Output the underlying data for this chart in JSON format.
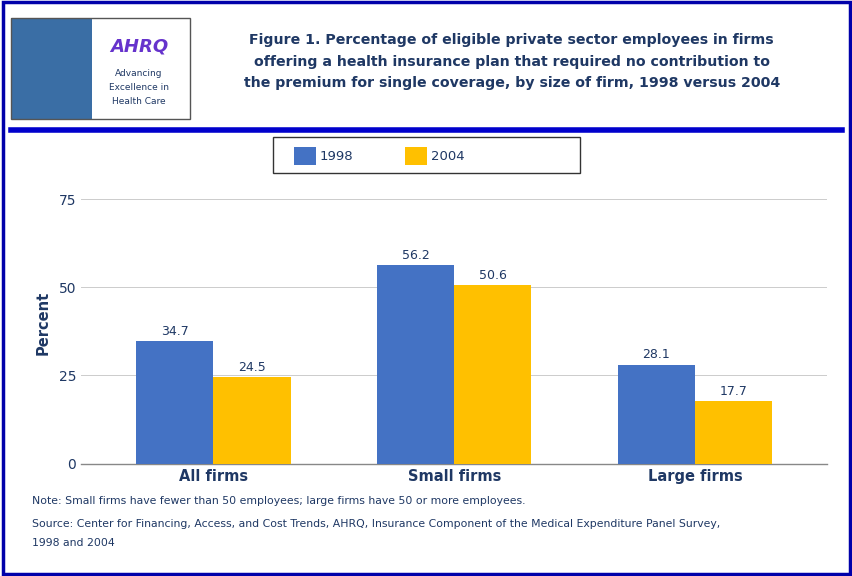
{
  "categories": [
    "All firms",
    "Small firms",
    "Large firms"
  ],
  "values_1998": [
    34.7,
    56.2,
    28.1
  ],
  "values_2004": [
    24.5,
    50.6,
    17.7
  ],
  "color_1998": "#4472C4",
  "color_2004": "#FFC000",
  "ylabel": "Percent",
  "ylim": [
    0,
    80
  ],
  "yticks": [
    0,
    25,
    50,
    75
  ],
  "legend_labels": [
    "1998",
    "2004"
  ],
  "title_line1": "Figure 1. Percentage of eligible private sector employees in firms",
  "title_line2": "offering a health insurance plan that required no contribution to",
  "title_line3": "the premium for single coverage, by size of firm, 1998 versus 2004",
  "note_line1": "Note: Small firms have fewer than 50 employees; large firms have 50 or more employees.",
  "note_line2": "Source: Center for Financing, Access, and Cost Trends, AHRQ, Insurance Component of the Medical Expenditure Panel Survey,",
  "note_line3": "1998 and 2004",
  "bar_width": 0.32,
  "title_color": "#1F3864",
  "axis_label_color": "#1F3864",
  "tick_label_color": "#1F3864",
  "note_color": "#1F3864",
  "border_color": "#0000AA",
  "header_line_color": "#0000CC",
  "background_color": "#FFFFFF",
  "plot_bg_color": "#FFFFFF",
  "logo_bg_left": "#3A6EA5",
  "logo_bg_right": "#FFFFFF"
}
